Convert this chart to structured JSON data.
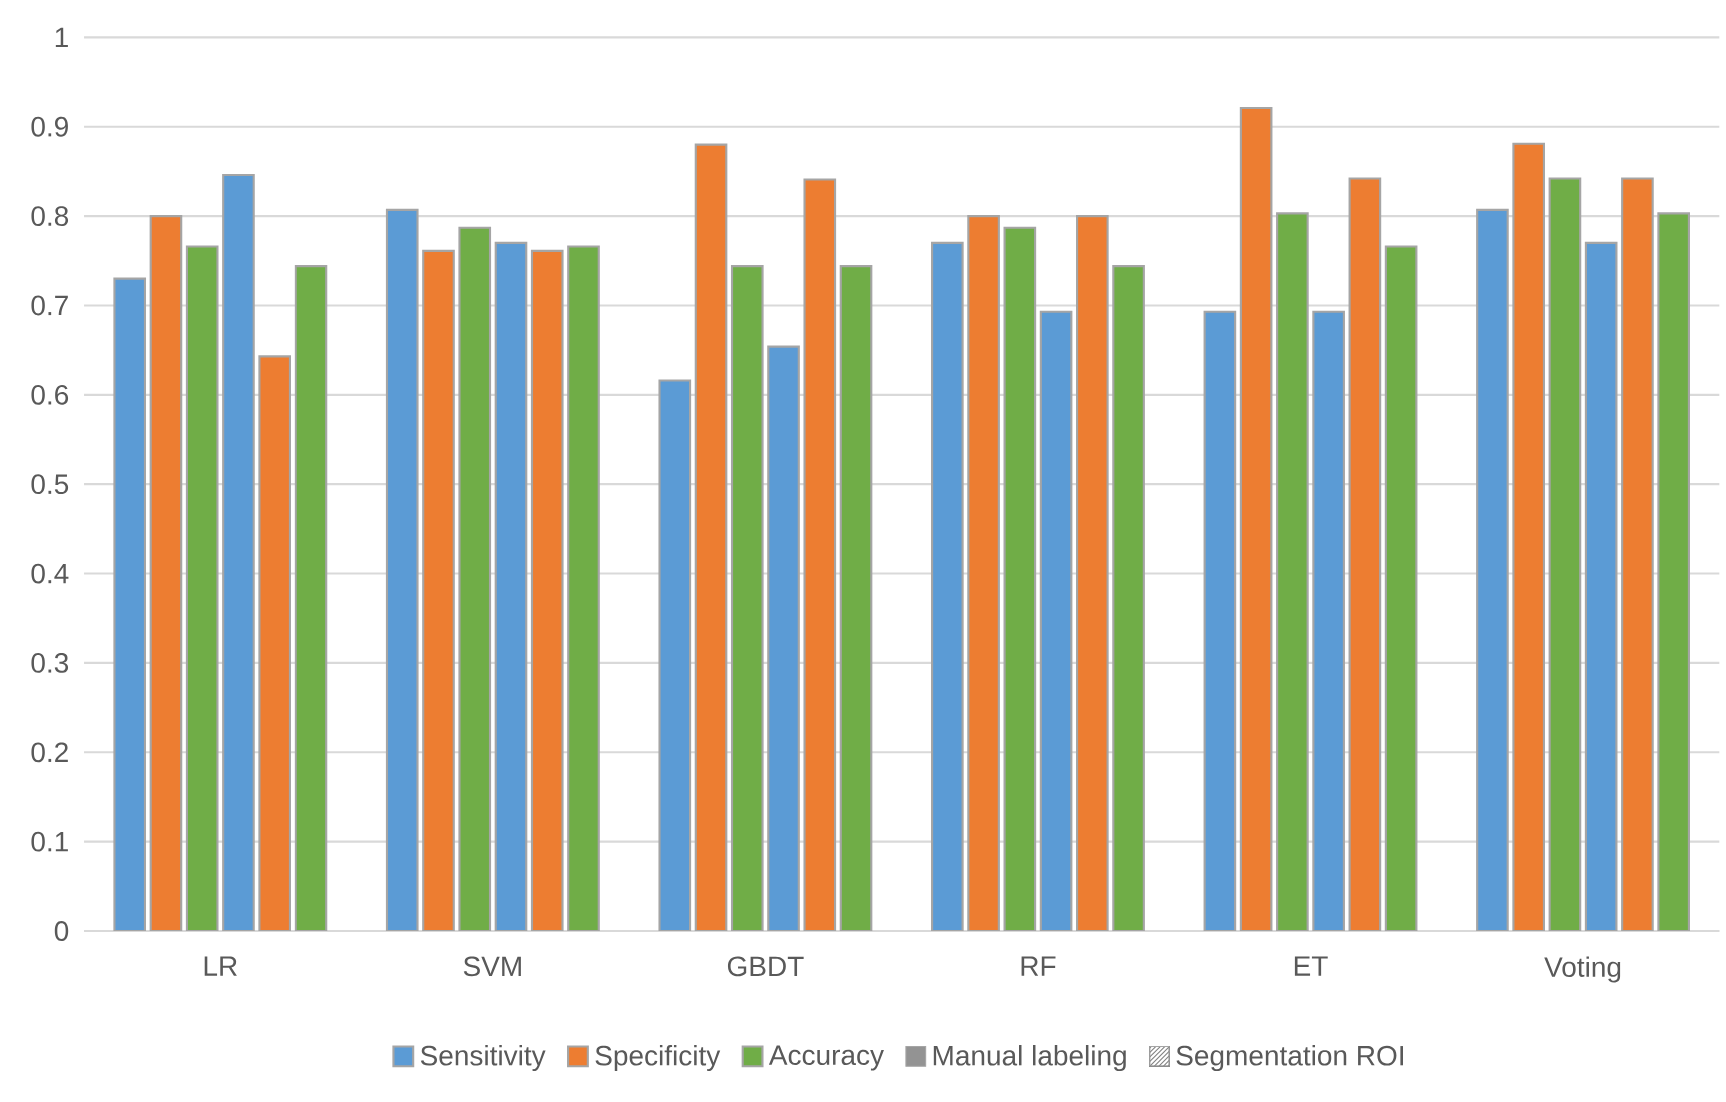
{
  "chart_data": {
    "type": "bar",
    "categories": [
      "LR",
      "SVM",
      "GBDT",
      "RF",
      "ET",
      "Voting"
    ],
    "series": [
      {
        "name": "Sensitivity",
        "color": "#5b9bd5",
        "values": [
          0.73,
          0.807,
          0.616,
          0.77,
          0.693,
          0.807
        ]
      },
      {
        "name": "Specificity",
        "color": "#ed7d31",
        "values": [
          0.8,
          0.761,
          0.88,
          0.8,
          0.921,
          0.881
        ]
      },
      {
        "name": "Accuracy",
        "color": "#70ad47",
        "values": [
          0.766,
          0.787,
          0.744,
          0.787,
          0.803,
          0.842
        ]
      },
      {
        "color": "#5b9bd5",
        "values": [
          0.846,
          0.77,
          0.654,
          0.693,
          0.693,
          0.77
        ]
      },
      {
        "color": "#ed7d31",
        "values": [
          0.643,
          0.761,
          0.841,
          0.8,
          0.842,
          0.842
        ]
      },
      {
        "color": "#70ad47",
        "values": [
          0.744,
          0.766,
          0.744,
          0.744,
          0.766,
          0.803
        ]
      }
    ],
    "annotations": [
      "Manual labeling",
      "Segmentation ROI"
    ],
    "ylim": [
      0,
      1
    ],
    "yticks": [
      0,
      0.1,
      0.2,
      0.3,
      0.4,
      0.5,
      0.6,
      0.7,
      0.8,
      0.9,
      1
    ],
    "grid": "y",
    "legend": "bottom"
  }
}
